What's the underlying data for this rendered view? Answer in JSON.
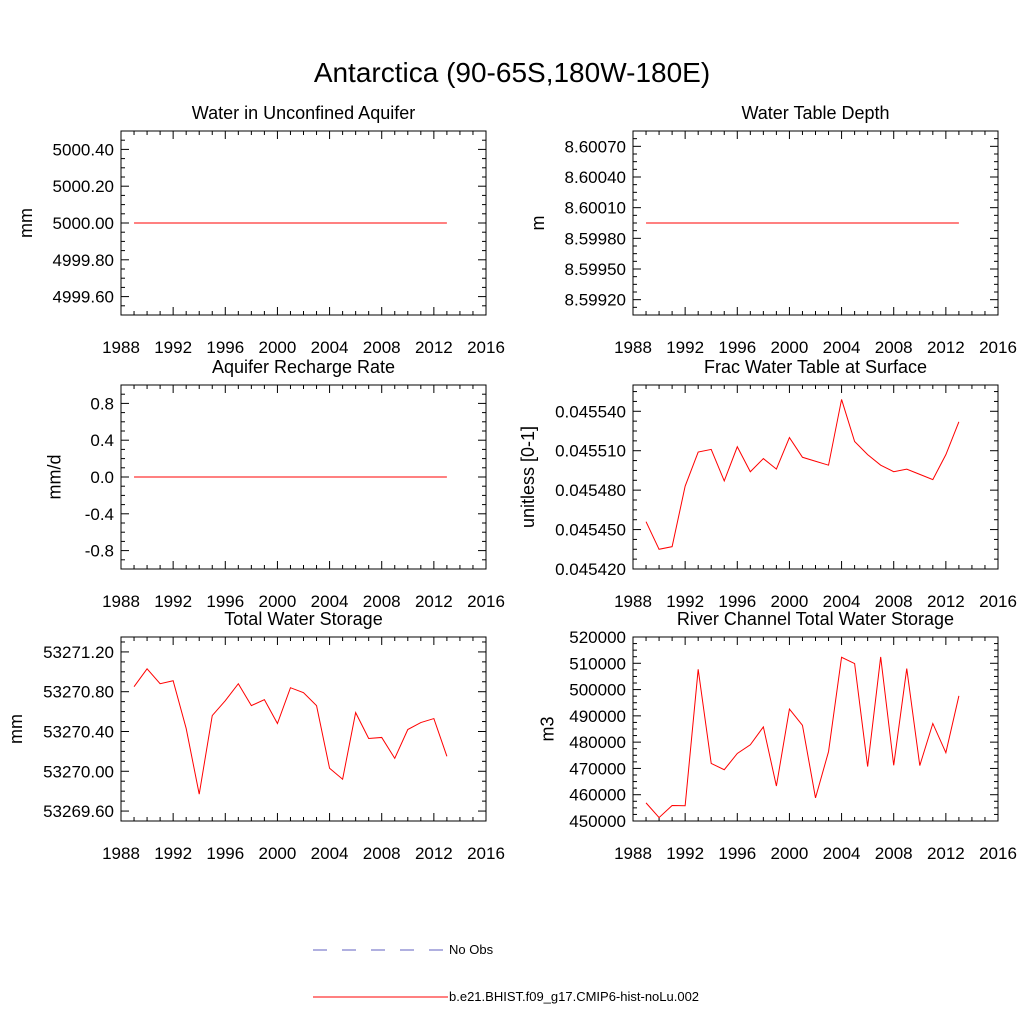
{
  "page_title": "Antarctica (90-65S,180W-180E)",
  "legend": [
    {
      "label": "No Obs",
      "color": "#6060c0",
      "dash": true
    },
    {
      "label": "b.e21.BHIST.f09_g17.CMIP6-hist-noLu.002",
      "color": "#ff0000",
      "dash": false
    }
  ],
  "chart_data": [
    {
      "type": "line",
      "title": "Water in Unconfined Aquifer",
      "ylabel": "mm",
      "xlim": [
        1988,
        2016
      ],
      "x_ticks": [
        1988,
        1992,
        1996,
        2000,
        2004,
        2008,
        2012,
        2016
      ],
      "ylim": [
        4999.5,
        5000.5
      ],
      "y_ticks": [
        4999.6,
        4999.8,
        5000.0,
        5000.2,
        5000.4
      ],
      "y_tick_labels": [
        "4999.60",
        "4999.80",
        "5000.00",
        "5000.20",
        "5000.40"
      ],
      "series": [
        {
          "color": "#ff0000",
          "x": [
            1989,
            1990,
            1991,
            1992,
            1993,
            1994,
            1995,
            1996,
            1997,
            1998,
            1999,
            2000,
            2001,
            2002,
            2003,
            2004,
            2005,
            2006,
            2007,
            2008,
            2009,
            2010,
            2011,
            2012,
            2013
          ],
          "y": [
            5000,
            5000,
            5000,
            5000,
            5000,
            5000,
            5000,
            5000,
            5000,
            5000,
            5000,
            5000,
            5000,
            5000,
            5000,
            5000,
            5000,
            5000,
            5000,
            5000,
            5000,
            5000,
            5000,
            5000,
            5000
          ]
        }
      ]
    },
    {
      "type": "line",
      "title": "Water Table Depth",
      "ylabel": "m",
      "xlim": [
        1988,
        2016
      ],
      "x_ticks": [
        1988,
        1992,
        1996,
        2000,
        2004,
        2008,
        2012,
        2016
      ],
      "ylim": [
        8.59905,
        8.60085
      ],
      "y_ticks": [
        8.5992,
        8.5995,
        8.5998,
        8.6001,
        8.6004,
        8.6007
      ],
      "y_tick_labels": [
        "8.59920",
        "8.59950",
        "8.59980",
        "8.60010",
        "8.60040",
        "8.60070"
      ],
      "series": [
        {
          "color": "#ff0000",
          "x": [
            1989,
            1990,
            1991,
            1992,
            1993,
            1994,
            1995,
            1996,
            1997,
            1998,
            1999,
            2000,
            2001,
            2002,
            2003,
            2004,
            2005,
            2006,
            2007,
            2008,
            2009,
            2010,
            2011,
            2012,
            2013
          ],
          "y": [
            8.59995,
            8.59995,
            8.59995,
            8.59995,
            8.59995,
            8.59995,
            8.59995,
            8.59995,
            8.59995,
            8.59995,
            8.59995,
            8.59995,
            8.59995,
            8.59995,
            8.59995,
            8.59995,
            8.59995,
            8.59995,
            8.59995,
            8.59995,
            8.59995,
            8.59995,
            8.59995,
            8.59995,
            8.59995
          ]
        }
      ]
    },
    {
      "type": "line",
      "title": "Aquifer Recharge Rate",
      "ylabel": "mm/d",
      "xlim": [
        1988,
        2016
      ],
      "x_ticks": [
        1988,
        1992,
        1996,
        2000,
        2004,
        2008,
        2012,
        2016
      ],
      "ylim": [
        -1.0,
        1.0
      ],
      "y_ticks": [
        -0.8,
        -0.4,
        0.0,
        0.4,
        0.8
      ],
      "y_tick_labels": [
        "-0.8",
        "-0.4",
        "0.0",
        "0.4",
        "0.8"
      ],
      "series": [
        {
          "color": "#ff0000",
          "x": [
            1989,
            1990,
            1991,
            1992,
            1993,
            1994,
            1995,
            1996,
            1997,
            1998,
            1999,
            2000,
            2001,
            2002,
            2003,
            2004,
            2005,
            2006,
            2007,
            2008,
            2009,
            2010,
            2011,
            2012,
            2013
          ],
          "y": [
            0,
            0,
            0,
            0,
            0,
            0,
            0,
            0,
            0,
            0,
            0,
            0,
            0,
            0,
            0,
            0,
            0,
            0,
            0,
            0,
            0,
            0,
            0,
            0,
            0
          ]
        }
      ]
    },
    {
      "type": "line",
      "title": "Frac Water Table at Surface",
      "ylabel": "unitless [0-1]",
      "xlim": [
        1988,
        2016
      ],
      "x_ticks": [
        1988,
        1992,
        1996,
        2000,
        2004,
        2008,
        2012,
        2016
      ],
      "ylim": [
        0.04542,
        0.04556
      ],
      "y_ticks": [
        0.04542,
        0.04545,
        0.04548,
        0.04551,
        0.04554
      ],
      "y_tick_labels": [
        "0.045420",
        "0.045450",
        "0.045480",
        "0.045510",
        "0.045540"
      ],
      "series": [
        {
          "color": "#ff0000",
          "x": [
            1989,
            1990,
            1991,
            1992,
            1993,
            1994,
            1995,
            1996,
            1997,
            1998,
            1999,
            2000,
            2001,
            2002,
            2003,
            2004,
            2005,
            2006,
            2007,
            2008,
            2009,
            2010,
            2011,
            2012,
            2013
          ],
          "y": [
            0.045456,
            0.045435,
            0.045437,
            0.045483,
            0.045509,
            0.045511,
            0.045487,
            0.045513,
            0.045494,
            0.045504,
            0.045496,
            0.04552,
            0.045505,
            0.045502,
            0.045499,
            0.045549,
            0.045517,
            0.045507,
            0.045499,
            0.045494,
            0.045496,
            0.045492,
            0.045488,
            0.045507,
            0.045532
          ]
        }
      ]
    },
    {
      "type": "line",
      "title": "Total Water Storage",
      "ylabel": "mm",
      "xlim": [
        1988,
        2016
      ],
      "x_ticks": [
        1988,
        1992,
        1996,
        2000,
        2004,
        2008,
        2012,
        2016
      ],
      "ylim": [
        53269.5,
        53271.35
      ],
      "y_ticks": [
        53269.6,
        53270.0,
        53270.4,
        53270.8,
        53271.2
      ],
      "y_tick_labels": [
        "53269.60",
        "53270.00",
        "53270.40",
        "53270.80",
        "53271.20"
      ],
      "series": [
        {
          "color": "#ff0000",
          "x": [
            1989,
            1990,
            1991,
            1992,
            1993,
            1994,
            1995,
            1996,
            1997,
            1998,
            1999,
            2000,
            2001,
            2002,
            2003,
            2004,
            2005,
            2006,
            2007,
            2008,
            2009,
            2010,
            2011,
            2012,
            2013
          ],
          "y": [
            53270.85,
            53271.03,
            53270.88,
            53270.91,
            53270.43,
            53269.77,
            53270.56,
            53270.71,
            53270.88,
            53270.66,
            53270.72,
            53270.48,
            53270.84,
            53270.79,
            53270.66,
            53270.03,
            53269.92,
            53270.59,
            53270.33,
            53270.34,
            53270.13,
            53270.42,
            53270.49,
            53270.53,
            53270.15
          ]
        }
      ]
    },
    {
      "type": "line",
      "title": "River Channel Total Water Storage",
      "ylabel": "m3",
      "xlim": [
        1988,
        2016
      ],
      "x_ticks": [
        1988,
        1992,
        1996,
        2000,
        2004,
        2008,
        2012,
        2016
      ],
      "ylim": [
        450000,
        520000
      ],
      "y_ticks": [
        450000,
        460000,
        470000,
        480000,
        490000,
        500000,
        510000,
        520000
      ],
      "y_tick_labels": [
        "450000",
        "460000",
        "470000",
        "480000",
        "490000",
        "500000",
        "510000",
        "520000"
      ],
      "series": [
        {
          "color": "#ff0000",
          "x": [
            1989,
            1990,
            1991,
            1992,
            1993,
            1994,
            1995,
            1996,
            1997,
            1998,
            1999,
            2000,
            2001,
            2002,
            2003,
            2004,
            2005,
            2006,
            2007,
            2008,
            2009,
            2010,
            2011,
            2012,
            2013
          ],
          "y": [
            456900,
            451300,
            455900,
            455800,
            507700,
            471900,
            469500,
            475700,
            479000,
            485800,
            463300,
            492600,
            486400,
            458800,
            476400,
            512300,
            509900,
            470700,
            512400,
            471200,
            508000,
            471100,
            487100,
            476000,
            497600
          ]
        }
      ]
    }
  ]
}
